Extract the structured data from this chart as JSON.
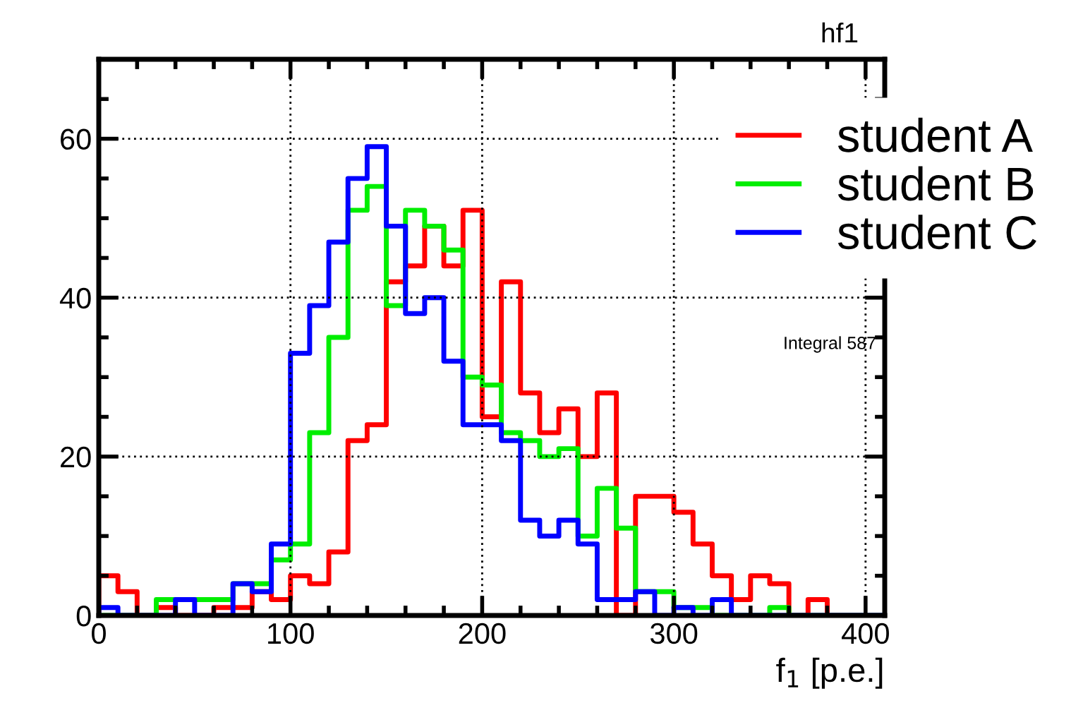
{
  "chart_data": {
    "type": "histogram",
    "xlabel": "f$_{1}$ [p.e.]",
    "annotations": [
      "hf1",
      "Integral 587"
    ],
    "bins": [
      0,
      10,
      20,
      30,
      40,
      50,
      60,
      70,
      80,
      90,
      100,
      110,
      120,
      130,
      140,
      150,
      160,
      170,
      180,
      190,
      200,
      210,
      220,
      230,
      240,
      250,
      260,
      270,
      280,
      290,
      300,
      310,
      320,
      330,
      340,
      350,
      360,
      370,
      380,
      390,
      400,
      410
    ],
    "series": [
      {
        "name": "student A",
        "color": "#ff0000",
        "values": [
          5,
          3,
          0,
          1,
          0,
          0,
          1,
          1,
          3,
          2,
          5,
          4,
          8,
          22,
          24,
          42,
          44,
          49,
          44,
          51,
          25,
          42,
          28,
          23,
          26,
          20,
          28,
          0,
          15,
          15,
          13,
          9,
          5,
          2,
          5,
          4,
          0,
          2,
          0,
          0,
          0
        ]
      },
      {
        "name": "student B",
        "color": "#00ee00",
        "values": [
          0,
          0,
          0,
          2,
          2,
          2,
          2,
          4,
          4,
          7,
          9,
          23,
          35,
          51,
          54,
          39,
          51,
          49,
          46,
          30,
          29,
          23,
          22,
          20,
          21,
          10,
          16,
          11,
          3,
          3,
          1,
          1,
          0,
          0,
          0,
          1,
          0,
          0,
          0,
          0,
          0
        ]
      },
      {
        "name": "student C",
        "color": "#0000ff",
        "values": [
          1,
          0,
          0,
          0,
          2,
          0,
          0,
          4,
          3,
          9,
          33,
          39,
          47,
          55,
          59,
          49,
          38,
          40,
          32,
          24,
          24,
          22,
          12,
          10,
          12,
          9,
          2,
          2,
          3,
          0,
          1,
          0,
          2,
          0,
          0,
          0,
          0,
          0,
          0,
          0,
          0
        ]
      }
    ],
    "xlim": [
      0,
      410
    ],
    "ylim": [
      0,
      70
    ],
    "xticks": [
      0,
      100,
      200,
      300,
      400
    ],
    "yticks": [
      0,
      20,
      40,
      60
    ],
    "grid": true,
    "legend": "top right"
  }
}
